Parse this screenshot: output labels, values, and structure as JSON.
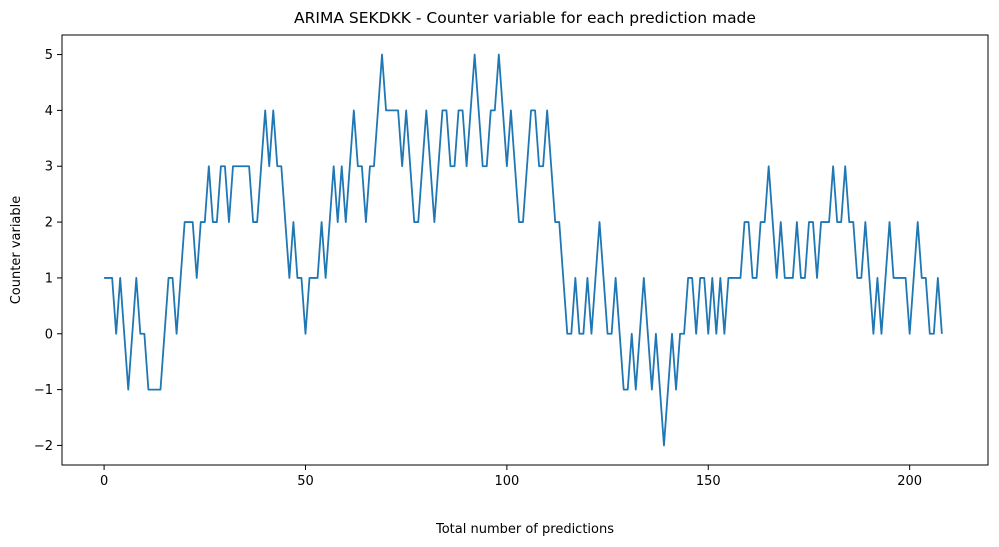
{
  "chart_data": {
    "type": "line",
    "title": "ARIMA SEKDKK - Counter variable for each prediction made",
    "xlabel": "Total number of predictions",
    "ylabel": "Counter variable",
    "xlim": [
      -10.45,
      219.45
    ],
    "ylim": [
      -2.35,
      5.35
    ],
    "xticks": [
      0,
      50,
      100,
      150,
      200
    ],
    "yticks": [
      -2,
      -1,
      0,
      1,
      2,
      3,
      4,
      5
    ],
    "grid": false,
    "line_color": "#1f77b4",
    "series": [
      {
        "values": [
          1,
          1,
          1,
          0,
          1,
          0,
          -1,
          0,
          1,
          0,
          0,
          -1,
          -1,
          -1,
          -1,
          0,
          1,
          1,
          0,
          1,
          2,
          2,
          2,
          1,
          2,
          2,
          3,
          2,
          2,
          3,
          3,
          2,
          3,
          3,
          3,
          3,
          3,
          2,
          2,
          3,
          4,
          3,
          4,
          3,
          3,
          2,
          1,
          2,
          1,
          1,
          0,
          1,
          1,
          1,
          2,
          1,
          2,
          3,
          2,
          3,
          2,
          3,
          4,
          3,
          3,
          2,
          3,
          3,
          4,
          5,
          4,
          4,
          4,
          4,
          3,
          4,
          3,
          2,
          2,
          3,
          4,
          3,
          2,
          3,
          4,
          4,
          3,
          3,
          4,
          4,
          3,
          4,
          5,
          4,
          3,
          3,
          4,
          4,
          5,
          4,
          3,
          4,
          3,
          2,
          2,
          3,
          4,
          4,
          3,
          3,
          4,
          3,
          2,
          2,
          1,
          0,
          0,
          1,
          0,
          0,
          1,
          0,
          1,
          2,
          1,
          0,
          0,
          1,
          0,
          -1,
          -1,
          0,
          -1,
          0,
          1,
          0,
          -1,
          0,
          -1,
          -2,
          -1,
          0,
          -1,
          0,
          0,
          1,
          1,
          0,
          1,
          1,
          0,
          1,
          0,
          1,
          0,
          1,
          1,
          1,
          1,
          2,
          2,
          1,
          1,
          2,
          2,
          3,
          2,
          1,
          2,
          1,
          1,
          1,
          2,
          1,
          1,
          2,
          2,
          1,
          2,
          2,
          2,
          3,
          2,
          2,
          3,
          2,
          2,
          1,
          1,
          2,
          1,
          0,
          1,
          0,
          1,
          2,
          1,
          1,
          1,
          1,
          0,
          1,
          2,
          1,
          1,
          0,
          0,
          1,
          0
        ]
      }
    ]
  }
}
